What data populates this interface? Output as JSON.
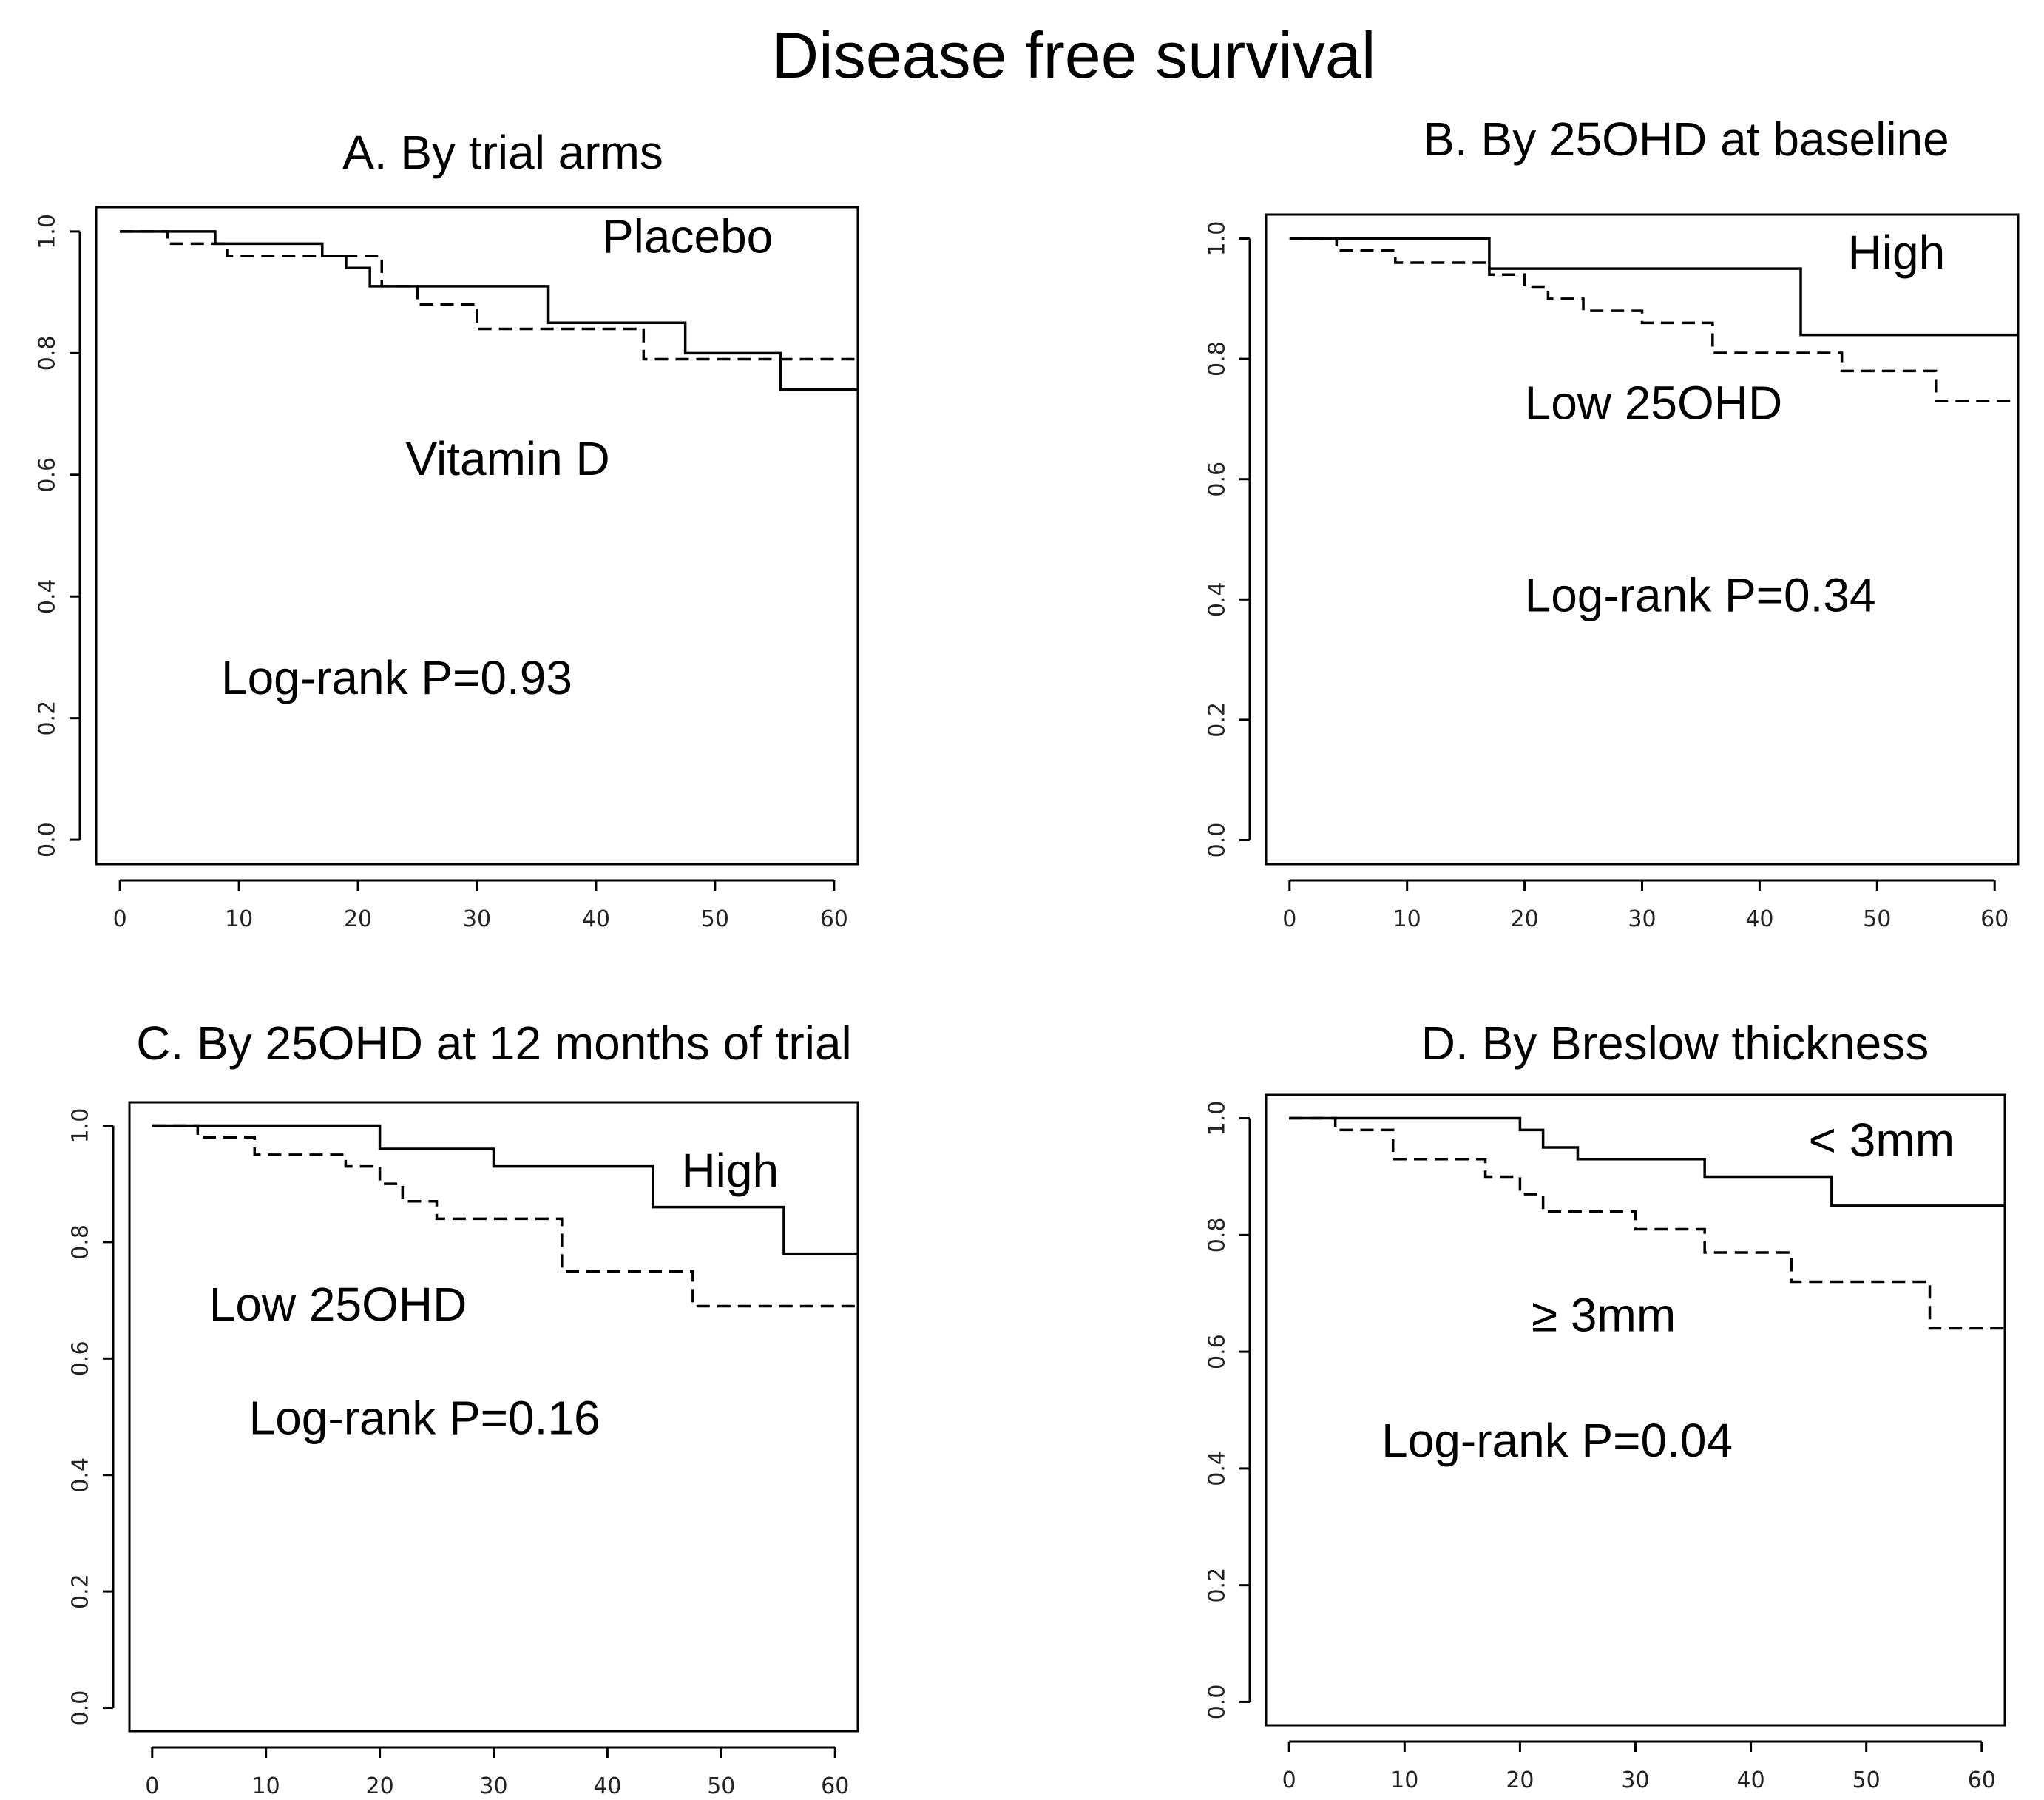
{
  "figure_title": "Disease free survival",
  "chart_data": [
    {
      "type": "line",
      "panel": "A",
      "title": "A. By trial arms",
      "xlabel": "",
      "ylabel": "",
      "xlim": [
        -2,
        62
      ],
      "ylim": [
        -0.04,
        1.04
      ],
      "x_ticks": [
        "0",
        "10",
        "20",
        "30",
        "40",
        "50",
        "60"
      ],
      "y_ticks": [
        "0.0",
        "0.2",
        "0.4",
        "0.6",
        "0.8",
        "1.0"
      ],
      "series": [
        {
          "name": "Placebo",
          "style": "solid",
          "x": [
            0,
            8,
            17,
            19,
            21,
            35.5,
            36,
            47.5,
            55.5,
            62
          ],
          "y": [
            1.0,
            0.98,
            0.96,
            0.94,
            0.91,
            0.91,
            0.85,
            0.8,
            0.74,
            0.74
          ]
        },
        {
          "name": "Vitamin D",
          "style": "dashed",
          "x": [
            0,
            4,
            9,
            20,
            22,
            25,
            30,
            44,
            62
          ],
          "y": [
            1.0,
            0.98,
            0.96,
            0.96,
            0.91,
            0.88,
            0.84,
            0.79,
            0.79
          ]
        }
      ],
      "annotations": [
        {
          "text": "Placebo",
          "x": 40.5,
          "y": 0.965
        },
        {
          "text": "Vitamin D",
          "x": 24,
          "y": 0.6
        },
        {
          "text": "Log-rank P=0.93",
          "x": 8.5,
          "y": 0.24
        }
      ]
    },
    {
      "type": "line",
      "panel": "B",
      "title": "B. By 25OHD at baseline",
      "xlabel": "",
      "ylabel": "",
      "xlim": [
        -2,
        62
      ],
      "ylim": [
        -0.04,
        1.04
      ],
      "x_ticks": [
        "0",
        "10",
        "20",
        "30",
        "40",
        "50",
        "60"
      ],
      "y_ticks": [
        "0.0",
        "0.2",
        "0.4",
        "0.6",
        "0.8",
        "1.0"
      ],
      "series": [
        {
          "name": "High",
          "style": "solid",
          "x": [
            0,
            17,
            43.5,
            62
          ],
          "y": [
            1.0,
            0.95,
            0.84,
            0.84
          ]
        },
        {
          "name": "Low 25OHD",
          "style": "dashed",
          "x": [
            0,
            4,
            9,
            17,
            20,
            22,
            25,
            30,
            36,
            47,
            55,
            62
          ],
          "y": [
            1.0,
            0.98,
            0.96,
            0.94,
            0.92,
            0.9,
            0.88,
            0.86,
            0.81,
            0.78,
            0.73,
            0.73
          ]
        }
      ],
      "annotations": [
        {
          "text": "High",
          "x": 47.5,
          "y": 0.95
        },
        {
          "text": "Low 25OHD",
          "x": 20,
          "y": 0.7
        },
        {
          "text": "Log-rank P=0.34",
          "x": 20,
          "y": 0.38
        }
      ]
    },
    {
      "type": "line",
      "panel": "C",
      "title": "C. By 25OHD at 12 months of trial",
      "xlabel": "",
      "ylabel": "",
      "xlim": [
        -2,
        62
      ],
      "ylim": [
        -0.04,
        1.04
      ],
      "x_ticks": [
        "0",
        "10",
        "20",
        "30",
        "40",
        "50",
        "60"
      ],
      "y_ticks": [
        "0.0",
        "0.2",
        "0.4",
        "0.6",
        "0.8",
        "1.0"
      ],
      "series": [
        {
          "name": "High",
          "style": "solid",
          "x": [
            0,
            20,
            30,
            44,
            55.5,
            62
          ],
          "y": [
            1.0,
            0.96,
            0.93,
            0.86,
            0.78,
            0.78
          ]
        },
        {
          "name": "Low 25OHD",
          "style": "dashed",
          "x": [
            0,
            4,
            9,
            17,
            20,
            22,
            25,
            36,
            47.5,
            62
          ],
          "y": [
            1.0,
            0.98,
            0.95,
            0.93,
            0.9,
            0.87,
            0.84,
            0.75,
            0.69,
            0.69
          ]
        }
      ],
      "annotations": [
        {
          "text": "High",
          "x": 46.5,
          "y": 0.895
        },
        {
          "text": "Low 25OHD",
          "x": 5,
          "y": 0.665
        },
        {
          "text": "Log-rank P=0.16",
          "x": 8.5,
          "y": 0.47
        }
      ]
    },
    {
      "type": "line",
      "panel": "D",
      "title": "D. By Breslow thickness",
      "xlabel": "",
      "ylabel": "",
      "xlim": [
        -2,
        62
      ],
      "ylim": [
        -0.04,
        1.04
      ],
      "x_ticks": [
        "0",
        "10",
        "20",
        "30",
        "40",
        "50",
        "60"
      ],
      "y_ticks": [
        "0.0",
        "0.2",
        "0.4",
        "0.6",
        "0.8",
        "1.0"
      ],
      "series": [
        {
          "name": "< 3mm",
          "style": "solid",
          "x": [
            0,
            20,
            22,
            25,
            36,
            47,
            62
          ],
          "y": [
            1.0,
            0.98,
            0.95,
            0.93,
            0.9,
            0.85,
            0.85
          ]
        },
        {
          "name": "≥ 3mm",
          "style": "dashed",
          "x": [
            0,
            4,
            9,
            17,
            20,
            22,
            30,
            36,
            43.5,
            55.5,
            62
          ],
          "y": [
            1.0,
            0.98,
            0.93,
            0.9,
            0.87,
            0.84,
            0.81,
            0.77,
            0.72,
            0.64,
            0.64
          ]
        }
      ],
      "annotations": [
        {
          "text": "< 3mm",
          "x": 45,
          "y": 0.935
        },
        {
          "text": "≥ 3mm",
          "x": 21,
          "y": 0.635
        },
        {
          "text": "Log-rank P=0.04",
          "x": 8,
          "y": 0.42
        }
      ]
    }
  ]
}
